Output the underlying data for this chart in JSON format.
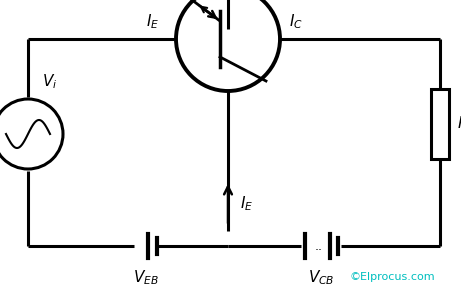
{
  "bg_color": "#ffffff",
  "line_color": "#000000",
  "line_width": 2.2,
  "text_color": "#000000",
  "cyan_color": "#00BFBF",
  "copyright": "©Elprocus.com",
  "fig_width": 4.61,
  "fig_height": 2.94,
  "dpi": 100
}
